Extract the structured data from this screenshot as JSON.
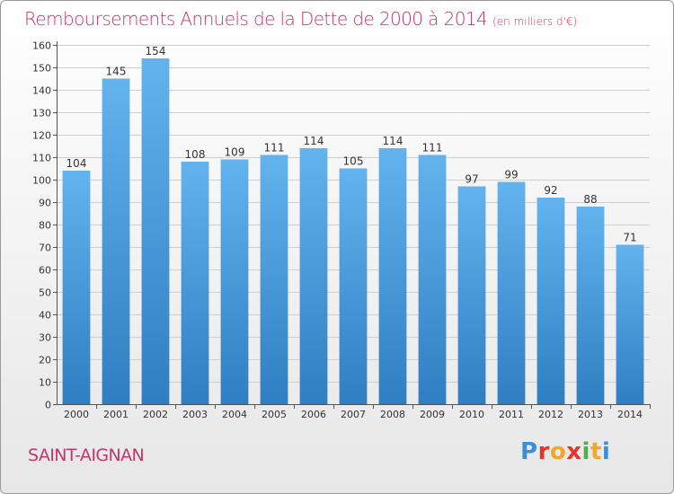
{
  "header": {
    "title": "Remboursements Annuels de la Dette de 2000 à 2014",
    "subtitle": "(en milliers d'€)"
  },
  "footer": {
    "commune": "SAINT-AIGNAN",
    "logo_text": "Proxiti",
    "logo_colors": [
      "#3b8fd9",
      "#e8332a",
      "#f5a623",
      "#e8332a",
      "#4caf50",
      "#f5a623",
      "#3b8fd9"
    ]
  },
  "colors": {
    "bar_top": "#63b3ee",
    "bar_bottom": "#2f7ec2",
    "title": "#c2366c",
    "grid": "#cfcfcf"
  },
  "chart_data": {
    "type": "bar",
    "title": "Remboursements Annuels de la Dette de 2000 à 2014",
    "subtitle": "(en milliers d'€)",
    "categories": [
      "2000",
      "2001",
      "2002",
      "2003",
      "2004",
      "2005",
      "2006",
      "2007",
      "2008",
      "2009",
      "2010",
      "2011",
      "2012",
      "2013",
      "2014"
    ],
    "values": [
      104,
      145,
      154,
      108,
      109,
      111,
      114,
      105,
      114,
      111,
      97,
      99,
      92,
      88,
      71
    ],
    "ylim": [
      0,
      160
    ],
    "yticks": [
      0,
      10,
      20,
      30,
      40,
      50,
      60,
      70,
      80,
      90,
      100,
      110,
      120,
      130,
      140,
      150,
      160
    ],
    "grid": true,
    "data_labels": true
  }
}
